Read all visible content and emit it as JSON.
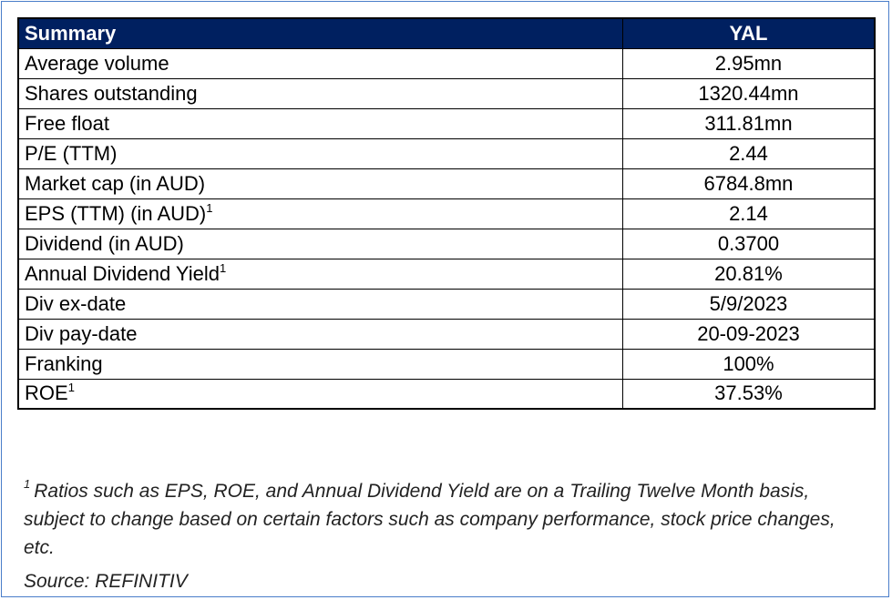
{
  "table": {
    "header": {
      "label": "Summary",
      "value": "YAL"
    },
    "rows": [
      {
        "label": "Average volume",
        "sup": "",
        "value": "2.95mn"
      },
      {
        "label": "Shares outstanding",
        "sup": "",
        "value": "1320.44mn"
      },
      {
        "label": "Free float",
        "sup": "",
        "value": "311.81mn"
      },
      {
        "label": "P/E (TTM)",
        "sup": "",
        "value": "2.44"
      },
      {
        "label": "Market cap (in AUD)",
        "sup": "",
        "value": "6784.8mn"
      },
      {
        "label": "EPS (TTM) (in AUD)",
        "sup": "1",
        "value": "2.14"
      },
      {
        "label": "Dividend (in AUD)",
        "sup": "",
        "value": "0.3700"
      },
      {
        "label": "Annual Dividend Yield",
        "sup": "1",
        "value": "20.81%"
      },
      {
        "label": "Div ex-date",
        "sup": "",
        "value": "5/9/2023"
      },
      {
        "label": "Div pay-date",
        "sup": "",
        "value": "20-09-2023"
      },
      {
        "label": "Franking",
        "sup": "",
        "value": "100%"
      },
      {
        "label": "ROE",
        "sup": "1",
        "value": "37.53%"
      }
    ]
  },
  "footnote": {
    "marker": "1",
    "text": "Ratios such as EPS, ROE, and Annual Dividend Yield are on a Trailing Twelve Month basis, subject to change based on certain factors such as company performance, stock price changes, etc."
  },
  "source": "Source: REFINITIV",
  "colors": {
    "header_bg": "#002060",
    "frame_border": "#4a7dc9"
  }
}
